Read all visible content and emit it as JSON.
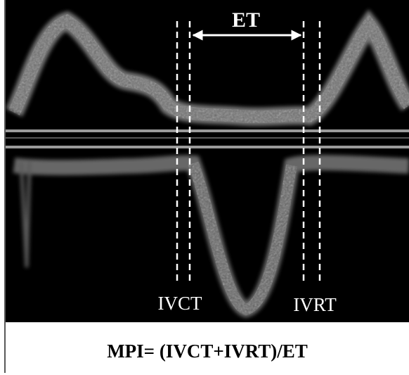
{
  "image": {
    "labels": {
      "top": "ET",
      "left": "IVCT",
      "right": "IVRT"
    }
  },
  "caption": "MPI= (IVCT+IVRT)/ET"
}
